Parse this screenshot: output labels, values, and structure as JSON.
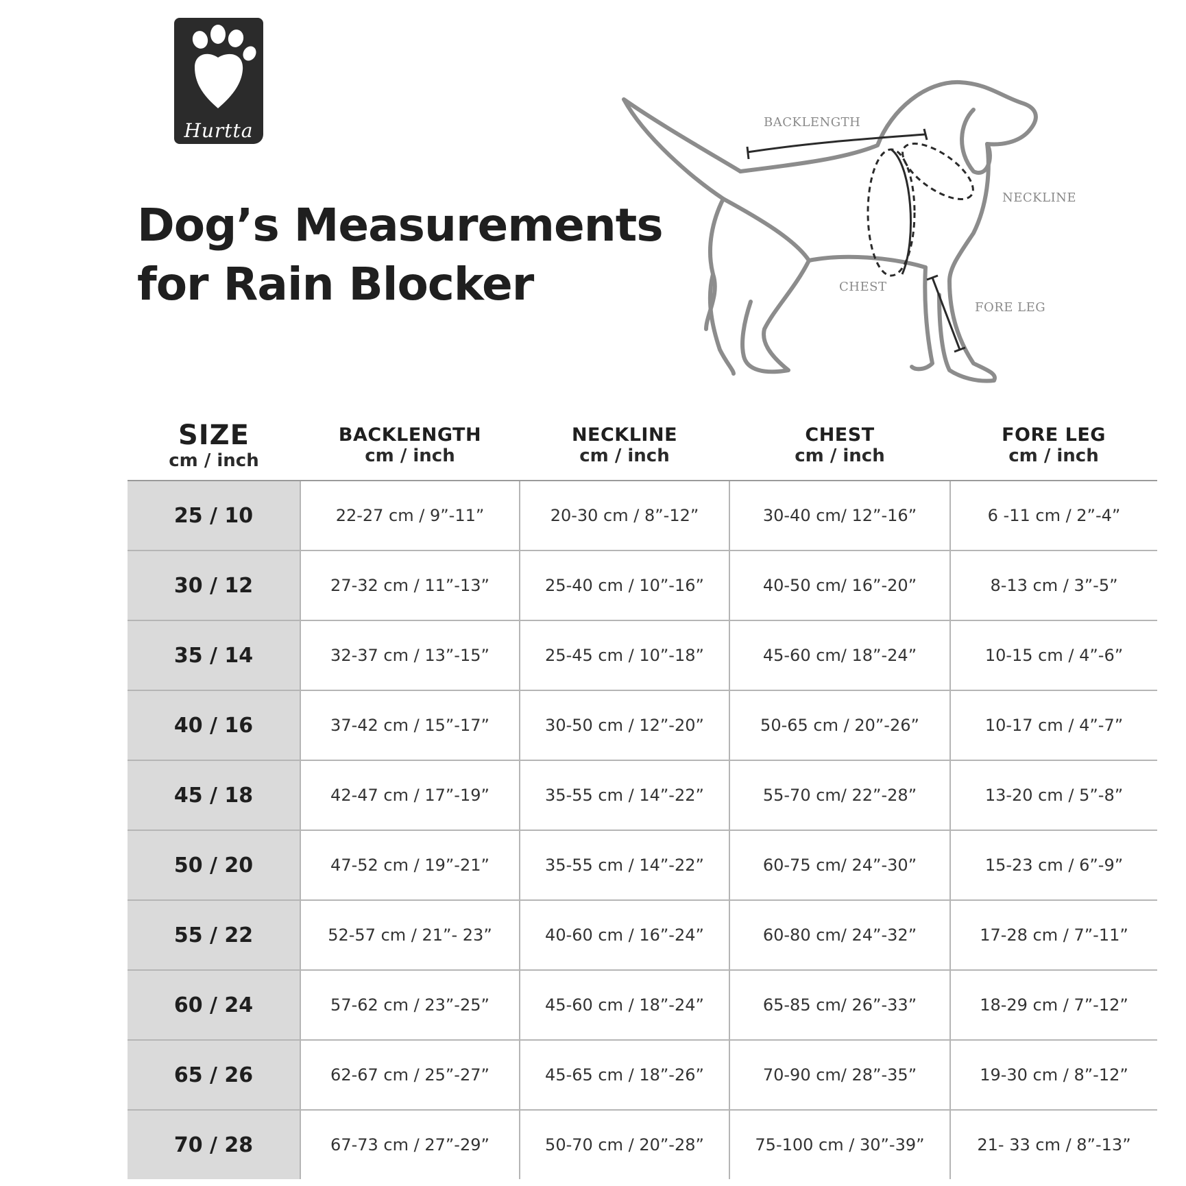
{
  "brand": {
    "logo_text": "Hurtta",
    "logo_icon": "paw-print-icon"
  },
  "title": {
    "line1": "Dog’s Measurements",
    "line2": "for Rain Blocker"
  },
  "diagram": {
    "labels": {
      "backlength": "BACKLENGTH",
      "neckline": "NECKLINE",
      "chest": "CHEST",
      "foreleg": "FORE LEG"
    }
  },
  "table": {
    "headers": [
      {
        "title": "SIZE",
        "unit": "cm / inch"
      },
      {
        "title": "BACKLENGTH",
        "unit": "cm / inch"
      },
      {
        "title": "NECKLINE",
        "unit": "cm / inch"
      },
      {
        "title": "CHEST",
        "unit": "cm / inch"
      },
      {
        "title": "FORE LEG",
        "unit": "cm / inch"
      }
    ],
    "rows": [
      [
        "25 / 10",
        "22-27 cm / 9”-11”",
        "20-30 cm / 8”-12”",
        "30-40 cm/ 12”-16”",
        "6 -11 cm / 2”-4”"
      ],
      [
        "30 / 12",
        "27-32 cm / 11”-13”",
        "25-40 cm / 10”-16”",
        "40-50 cm/ 16”-20”",
        "8-13 cm / 3”-5”"
      ],
      [
        "35 / 14",
        "32-37 cm / 13”-15”",
        "25-45 cm / 10”-18”",
        "45-60 cm/ 18”-24”",
        "10-15 cm / 4”-6”"
      ],
      [
        "40 / 16",
        "37-42 cm / 15”-17”",
        "30-50 cm / 12”-20”",
        "50-65 cm / 20”-26”",
        "10-17 cm / 4”-7”"
      ],
      [
        "45 / 18",
        "42-47 cm / 17”-19”",
        "35-55 cm / 14”-22”",
        "55-70 cm/ 22”-28”",
        "13-20 cm / 5”-8”"
      ],
      [
        "50 / 20",
        "47-52 cm / 19”-21”",
        "35-55 cm / 14”-22”",
        "60-75 cm/ 24”-30”",
        "15-23 cm / 6”-9”"
      ],
      [
        "55 / 22",
        "52-57 cm / 21”- 23”",
        "40-60 cm / 16”-24”",
        "60-80 cm/ 24”-32”",
        "17-28 cm / 7”-11”"
      ],
      [
        "60 / 24",
        "57-62 cm / 23”-25”",
        "45-60 cm / 18”-24”",
        "65-85 cm/ 26”-33”",
        "18-29 cm / 7”-12”"
      ],
      [
        "65 / 26",
        "62-67 cm / 25”-27”",
        "45-65 cm / 18”-26”",
        "70-90 cm/ 28”-35”",
        "19-30 cm / 8”-12”"
      ],
      [
        "70 / 28",
        "67-73 cm / 27”-29”",
        "50-70 cm / 20”-28”",
        "75-100 cm / 30”-39”",
        "21- 33 cm / 8”-13”"
      ]
    ]
  }
}
